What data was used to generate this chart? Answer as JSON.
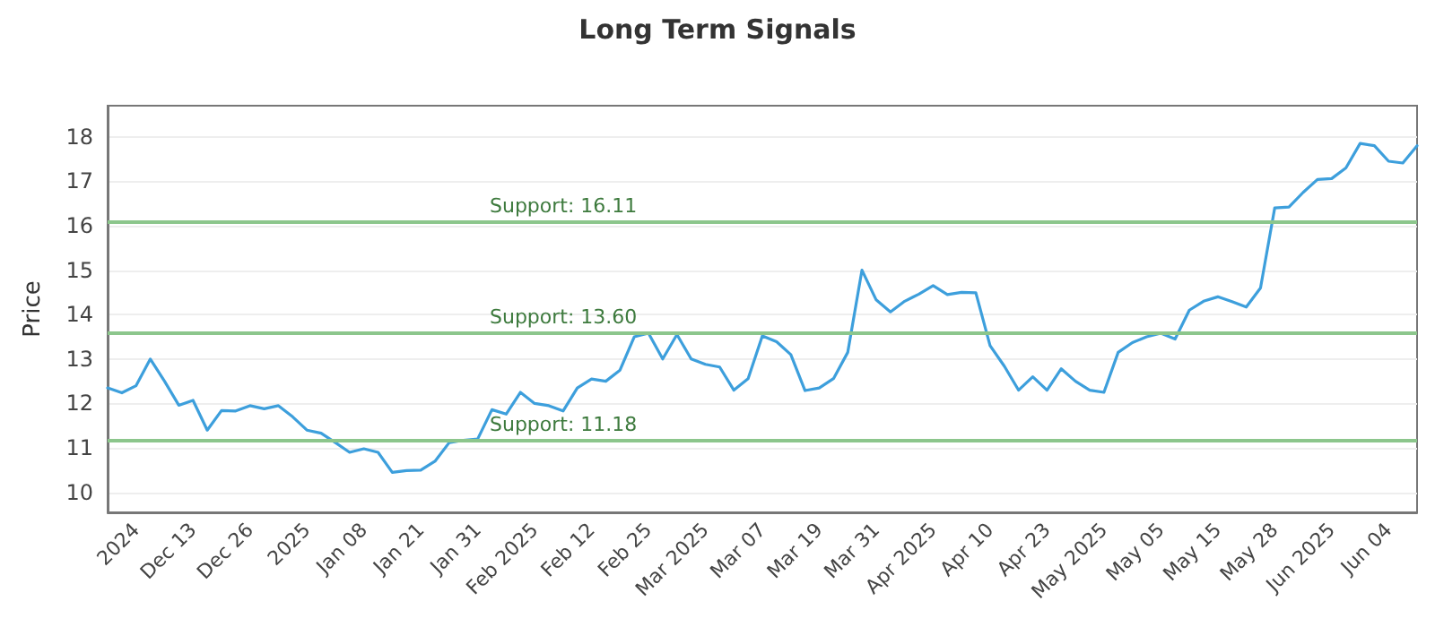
{
  "chart_data": {
    "type": "line",
    "title": "Long Term Signals",
    "ylabel": "Price",
    "categories": [
      null,
      null,
      "2024",
      null,
      null,
      null,
      "Dec 13",
      null,
      null,
      null,
      "Dec 26",
      null,
      null,
      null,
      "2025",
      null,
      null,
      null,
      "Jan 08",
      null,
      null,
      null,
      "Jan 21",
      null,
      null,
      null,
      "Jan 31",
      null,
      null,
      null,
      "Feb 2025",
      null,
      null,
      null,
      "Feb 12",
      null,
      null,
      null,
      "Feb 25",
      null,
      null,
      null,
      "Mar 2025",
      null,
      null,
      null,
      "Mar 07",
      null,
      null,
      null,
      "Mar 19",
      null,
      null,
      null,
      "Mar 31",
      null,
      null,
      null,
      "Apr 2025",
      null,
      null,
      null,
      "Apr 10",
      null,
      null,
      null,
      "Apr 23",
      null,
      null,
      null,
      "May 2025",
      null,
      null,
      null,
      "May 05",
      null,
      null,
      null,
      "May 15",
      null,
      null,
      null,
      "May 28",
      null,
      null,
      null,
      "Jun 2025",
      null,
      null,
      null,
      "Jun 04",
      null,
      null
    ],
    "series": [
      {
        "color": "#3d9fdc",
        "values": [
          12.35,
          12.24,
          12.4,
          13.0,
          12.5,
          11.96,
          12.07,
          11.4,
          11.84,
          11.83,
          11.95,
          11.88,
          11.95,
          11.7,
          11.4,
          11.33,
          11.12,
          10.9,
          10.98,
          10.9,
          10.45,
          10.49,
          10.5,
          10.7,
          11.12,
          11.17,
          11.2,
          11.86,
          11.76,
          12.25,
          12.0,
          11.95,
          11.83,
          12.35,
          12.55,
          12.5,
          12.75,
          13.5,
          13.58,
          13.0,
          13.55,
          13.0,
          12.88,
          12.82,
          12.3,
          12.56,
          13.52,
          13.39,
          13.1,
          12.29,
          12.35,
          12.56,
          13.15,
          15.0,
          14.33,
          14.06,
          14.3,
          14.46,
          14.65,
          14.45,
          14.5,
          14.49,
          13.3,
          12.84,
          12.3,
          12.6,
          12.3,
          12.78,
          12.5,
          12.3,
          12.25,
          13.15,
          13.37,
          13.5,
          13.58,
          13.45,
          14.1,
          14.3,
          14.4,
          14.29,
          14.17,
          14.6,
          16.4,
          16.42,
          16.75,
          17.04,
          17.06,
          17.3,
          17.85,
          17.8,
          17.45,
          17.41,
          17.8
        ]
      }
    ],
    "ylim": [
      9.55,
      18.7
    ],
    "yticks": [
      10,
      11,
      12,
      13,
      14,
      15,
      16,
      17,
      18
    ],
    "grid": "y",
    "marker": "none",
    "line_style": "solid",
    "ref_lines": [
      {
        "axis": "y",
        "value": 16.11,
        "label": "Support: 16.11",
        "color": "#8cc68c"
      },
      {
        "axis": "y",
        "value": 13.6,
        "label": "Support: 13.60",
        "color": "#8cc68c"
      },
      {
        "axis": "y",
        "value": 11.18,
        "label": "Support: 11.18",
        "color": "#8cc68c"
      }
    ]
  }
}
